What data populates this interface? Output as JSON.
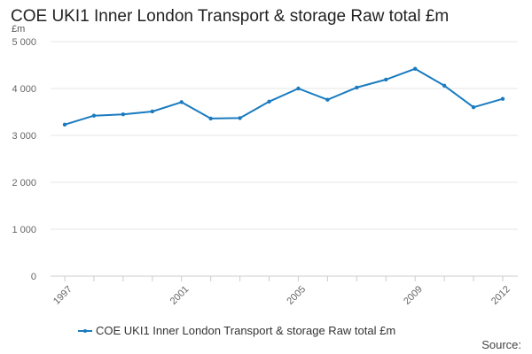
{
  "chart_data": {
    "type": "line",
    "title": "COE UKI1 Inner London Transport & storage Raw total £m",
    "ylabel": "£m",
    "xlabel": "",
    "x": [
      1997,
      1998,
      1999,
      2000,
      2001,
      2002,
      2003,
      2004,
      2005,
      2006,
      2007,
      2008,
      2009,
      2010,
      2011,
      2012
    ],
    "x_tick_labels": [
      "1997",
      "2001",
      "2005",
      "2009",
      "2012"
    ],
    "y_tick_labels": [
      "0",
      "1 000",
      "2 000",
      "3 000",
      "4 000",
      "5 000"
    ],
    "ylim": [
      0,
      5000
    ],
    "grid": true,
    "legend_position": "bottom",
    "series": [
      {
        "name": "COE UKI1 Inner London Transport & storage Raw total £m",
        "color": "#1a7bbf",
        "values": [
          3230,
          3420,
          3450,
          3510,
          3710,
          3360,
          3370,
          3720,
          4000,
          3760,
          4020,
          4190,
          4420,
          4060,
          3600,
          3780
        ]
      }
    ]
  },
  "source_label": "Source:"
}
